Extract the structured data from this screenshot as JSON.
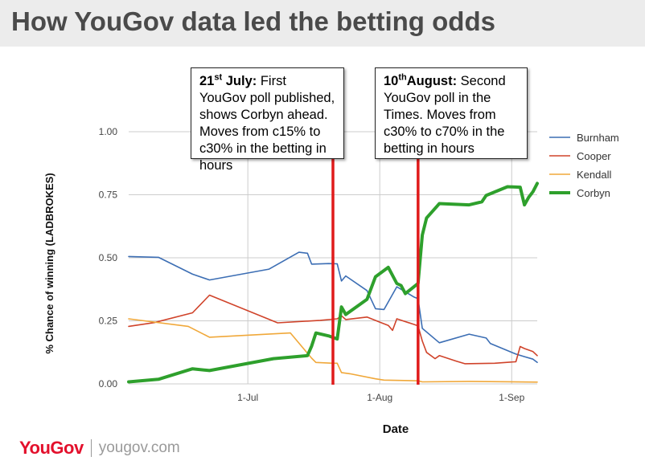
{
  "title": "How YouGov data led the betting odds",
  "footer": {
    "brand": "YouGov",
    "site": "yougov.com"
  },
  "callouts": [
    {
      "date_label": "21",
      "date_sup": "st",
      "date_rest": " July:",
      "text": " First YouGov poll published, shows Corbyn ahead. Moves from c15% to c30% in the betting in hours"
    },
    {
      "date_label": "10",
      "date_sup": "th",
      "date_rest": "August:",
      "text": " Second YouGov poll in the Times. Moves from c30% to c70% in the betting in hours"
    }
  ],
  "chart_data": {
    "type": "line",
    "xlabel": "Date",
    "ylabel": "% Chance of winning (LADBROKES)",
    "ylim": [
      0,
      1
    ],
    "yticks": [
      "0.00",
      "0.25",
      "0.50",
      "0.75",
      "1.00"
    ],
    "xlim": [
      "2015-06-03",
      "2015-09-07"
    ],
    "xticks": [
      {
        "date": "2015-07-01",
        "label": "1-Jul"
      },
      {
        "date": "2015-08-01",
        "label": "1-Aug"
      },
      {
        "date": "2015-09-01",
        "label": "1-Sep"
      }
    ],
    "grid": true,
    "legend_position": "right",
    "vlines": [
      {
        "date": "2015-07-21",
        "color": "#e01b1b"
      },
      {
        "date": "2015-08-10",
        "color": "#e01b1b"
      }
    ],
    "series": [
      {
        "name": "Burnham",
        "color": "#3c6eb4",
        "width": 1.6,
        "points": [
          [
            "2015-06-03",
            0.505
          ],
          [
            "2015-06-10",
            0.502
          ],
          [
            "2015-06-18",
            0.435
          ],
          [
            "2015-06-22",
            0.412
          ],
          [
            "2015-07-06",
            0.455
          ],
          [
            "2015-07-13",
            0.522
          ],
          [
            "2015-07-15",
            0.518
          ],
          [
            "2015-07-16",
            0.475
          ],
          [
            "2015-07-20",
            0.477
          ],
          [
            "2015-07-22",
            0.476
          ],
          [
            "2015-07-23",
            0.408
          ],
          [
            "2015-07-24",
            0.428
          ],
          [
            "2015-07-29",
            0.37
          ],
          [
            "2015-07-31",
            0.298
          ],
          [
            "2015-08-02",
            0.295
          ],
          [
            "2015-08-05",
            0.385
          ],
          [
            "2015-08-09",
            0.345
          ],
          [
            "2015-08-10",
            0.338
          ],
          [
            "2015-08-11",
            0.22
          ],
          [
            "2015-08-15",
            0.163
          ],
          [
            "2015-08-22",
            0.197
          ],
          [
            "2015-08-26",
            0.182
          ],
          [
            "2015-08-27",
            0.16
          ],
          [
            "2015-09-02",
            0.118
          ],
          [
            "2015-09-04",
            0.108
          ],
          [
            "2015-09-06",
            0.098
          ],
          [
            "2015-09-07",
            0.085
          ]
        ]
      },
      {
        "name": "Cooper",
        "color": "#d0432a",
        "width": 1.6,
        "points": [
          [
            "2015-06-03",
            0.228
          ],
          [
            "2015-06-09",
            0.243
          ],
          [
            "2015-06-18",
            0.282
          ],
          [
            "2015-06-22",
            0.352
          ],
          [
            "2015-07-08",
            0.242
          ],
          [
            "2015-07-18",
            0.252
          ],
          [
            "2015-07-22",
            0.258
          ],
          [
            "2015-07-23",
            0.27
          ],
          [
            "2015-07-24",
            0.255
          ],
          [
            "2015-07-29",
            0.265
          ],
          [
            "2015-08-01",
            0.245
          ],
          [
            "2015-08-03",
            0.232
          ],
          [
            "2015-08-04",
            0.212
          ],
          [
            "2015-08-05",
            0.258
          ],
          [
            "2015-08-09",
            0.236
          ],
          [
            "2015-08-10",
            0.23
          ],
          [
            "2015-08-11",
            0.17
          ],
          [
            "2015-08-12",
            0.125
          ],
          [
            "2015-08-14",
            0.1
          ],
          [
            "2015-08-15",
            0.112
          ],
          [
            "2015-08-19",
            0.09
          ],
          [
            "2015-08-21",
            0.08
          ],
          [
            "2015-08-28",
            0.082
          ],
          [
            "2015-09-02",
            0.088
          ],
          [
            "2015-09-03",
            0.148
          ],
          [
            "2015-09-04",
            0.14
          ],
          [
            "2015-09-06",
            0.128
          ],
          [
            "2015-09-07",
            0.112
          ]
        ]
      },
      {
        "name": "Kendall",
        "color": "#f0a83a",
        "width": 1.6,
        "points": [
          [
            "2015-06-03",
            0.258
          ],
          [
            "2015-06-17",
            0.228
          ],
          [
            "2015-06-22",
            0.185
          ],
          [
            "2015-07-11",
            0.202
          ],
          [
            "2015-07-16",
            0.102
          ],
          [
            "2015-07-17",
            0.085
          ],
          [
            "2015-07-21",
            0.082
          ],
          [
            "2015-07-22",
            0.082
          ],
          [
            "2015-07-23",
            0.045
          ],
          [
            "2015-07-25",
            0.04
          ],
          [
            "2015-07-31",
            0.02
          ],
          [
            "2015-08-02",
            0.015
          ],
          [
            "2015-08-10",
            0.012
          ],
          [
            "2015-08-11",
            0.008
          ],
          [
            "2015-08-22",
            0.01
          ],
          [
            "2015-09-07",
            0.007
          ]
        ]
      },
      {
        "name": "Corbyn",
        "color": "#2ea02c",
        "width": 4,
        "points": [
          [
            "2015-06-03",
            0.008
          ],
          [
            "2015-06-10",
            0.018
          ],
          [
            "2015-06-18",
            0.06
          ],
          [
            "2015-06-22",
            0.053
          ],
          [
            "2015-07-07",
            0.1
          ],
          [
            "2015-07-15",
            0.112
          ],
          [
            "2015-07-16",
            0.15
          ],
          [
            "2015-07-17",
            0.202
          ],
          [
            "2015-07-20",
            0.19
          ],
          [
            "2015-07-22",
            0.178
          ],
          [
            "2015-07-23",
            0.305
          ],
          [
            "2015-07-24",
            0.275
          ],
          [
            "2015-07-29",
            0.335
          ],
          [
            "2015-07-31",
            0.425
          ],
          [
            "2015-08-03",
            0.462
          ],
          [
            "2015-08-05",
            0.398
          ],
          [
            "2015-08-06",
            0.39
          ],
          [
            "2015-08-07",
            0.358
          ],
          [
            "2015-08-10",
            0.398
          ],
          [
            "2015-08-11",
            0.59
          ],
          [
            "2015-08-12",
            0.658
          ],
          [
            "2015-08-15",
            0.715
          ],
          [
            "2015-08-22",
            0.71
          ],
          [
            "2015-08-25",
            0.722
          ],
          [
            "2015-08-26",
            0.747
          ],
          [
            "2015-08-31",
            0.782
          ],
          [
            "2015-09-03",
            0.78
          ],
          [
            "2015-09-04",
            0.71
          ],
          [
            "2015-09-05",
            0.74
          ],
          [
            "2015-09-06",
            0.762
          ],
          [
            "2015-09-07",
            0.795
          ]
        ]
      }
    ]
  }
}
